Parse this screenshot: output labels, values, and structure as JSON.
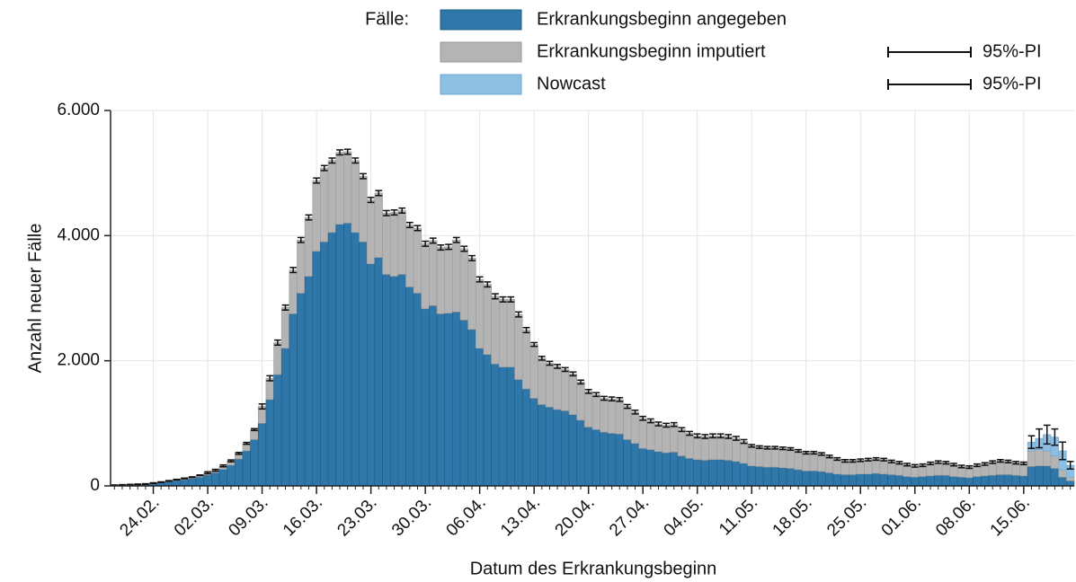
{
  "chart_data": {
    "type": "bar",
    "stacked": true,
    "legend": {
      "title": "Fälle:"
    },
    "ylabel": "Anzahl neuer Fälle",
    "xlabel": "Datum des Erkrankungsbeginn",
    "ylim": [
      0,
      6000
    ],
    "yticks": [
      0,
      {
        "value": 2000,
        "label": "2.000"
      },
      {
        "value": 4000,
        "label": "4.000"
      },
      {
        "value": 6000,
        "label": "6.000"
      }
    ],
    "grid": true,
    "categories": [
      null,
      null,
      null,
      null,
      null,
      "24.02.",
      null,
      null,
      null,
      null,
      null,
      null,
      "02.03.",
      null,
      null,
      null,
      null,
      null,
      null,
      "09.03.",
      null,
      null,
      null,
      null,
      null,
      null,
      "16.03.",
      null,
      null,
      null,
      null,
      null,
      null,
      "23.03.",
      null,
      null,
      null,
      null,
      null,
      null,
      "30.03.",
      null,
      null,
      null,
      null,
      null,
      null,
      "06.04.",
      null,
      null,
      null,
      null,
      null,
      null,
      "13.04.",
      null,
      null,
      null,
      null,
      null,
      null,
      "20.04.",
      null,
      null,
      null,
      null,
      null,
      null,
      "27.04.",
      null,
      null,
      null,
      null,
      null,
      null,
      "04.05.",
      null,
      null,
      null,
      null,
      null,
      null,
      "11.05.",
      null,
      null,
      null,
      null,
      null,
      null,
      "18.05.",
      null,
      null,
      null,
      null,
      null,
      null,
      "25.05.",
      null,
      null,
      null,
      null,
      null,
      null,
      "01.06.",
      null,
      null,
      null,
      null,
      null,
      null,
      "08.06.",
      null,
      null,
      null,
      null,
      null,
      null,
      "15.06.",
      null,
      null,
      null,
      null,
      null,
      null
    ],
    "series": [
      {
        "name": "Erkrankungsbeginn angegeben",
        "color": "#2e77a8",
        "stroke": "#1d5c86",
        "values": [
          9,
          13,
          17,
          21,
          26,
          38,
          50,
          68,
          85,
          100,
          118,
          140,
          175,
          210,
          265,
          330,
          430,
          560,
          740,
          1000,
          1380,
          1780,
          2200,
          2750,
          3080,
          3350,
          3750,
          3900,
          4050,
          4180,
          4200,
          4050,
          3900,
          3550,
          3650,
          3380,
          3350,
          3380,
          3180,
          3080,
          2830,
          2880,
          2750,
          2760,
          2780,
          2650,
          2500,
          2200,
          2100,
          1950,
          1900,
          1900,
          1700,
          1550,
          1400,
          1300,
          1260,
          1220,
          1200,
          1140,
          1050,
          940,
          900,
          860,
          840,
          830,
          740,
          680,
          600,
          580,
          550,
          530,
          540,
          480,
          440,
          420,
          410,
          420,
          420,
          410,
          390,
          360,
          320,
          310,
          300,
          300,
          290,
          280,
          260,
          240,
          240,
          230,
          210,
          190,
          180,
          180,
          190,
          190,
          200,
          190,
          180,
          170,
          150,
          140,
          150,
          160,
          170,
          170,
          150,
          140,
          130,
          150,
          160,
          170,
          180,
          180,
          170,
          160,
          310,
          320,
          320,
          280,
          140,
          80
        ]
      },
      {
        "name": "Erkrankungsbeginn imputiert",
        "color": "#b4b4b4",
        "stroke": "#9a9a9a",
        "interval_label": "95%-PI",
        "values": [
          1,
          2,
          3,
          4,
          4,
          7,
          10,
          12,
          15,
          20,
          22,
          30,
          35,
          40,
          55,
          70,
          90,
          120,
          160,
          270,
          340,
          510,
          650,
          700,
          850,
          940,
          1130,
          1180,
          1150,
          1150,
          1140,
          1150,
          1050,
          1020,
          1030,
          980,
          1020,
          1020,
          990,
          1040,
          1040,
          1040,
          1060,
          1060,
          1150,
          1140,
          1140,
          1100,
          1120,
          1080,
          1080,
          1080,
          1040,
          940,
          860,
          740,
          700,
          690,
          660,
          650,
          610,
          570,
          560,
          540,
          550,
          550,
          530,
          500,
          480,
          460,
          440,
          440,
          440,
          420,
          400,
          380,
          380,
          380,
          380,
          380,
          370,
          350,
          320,
          310,
          310,
          310,
          310,
          310,
          300,
          290,
          290,
          280,
          260,
          240,
          220,
          220,
          220,
          230,
          230,
          230,
          210,
          200,
          190,
          180,
          180,
          200,
          210,
          200,
          190,
          170,
          170,
          180,
          190,
          210,
          220,
          210,
          200,
          200,
          250,
          260,
          240,
          200,
          120,
          60
        ],
        "errors": [
          5,
          5,
          5,
          5,
          5,
          5,
          5,
          5,
          5,
          5,
          5,
          5,
          15,
          15,
          15,
          15,
          15,
          15,
          15,
          40,
          40,
          40,
          40,
          40,
          40,
          40,
          40,
          40,
          40,
          40,
          40,
          40,
          40,
          40,
          40,
          40,
          40,
          40,
          40,
          40,
          40,
          40,
          40,
          40,
          40,
          40,
          40,
          40,
          40,
          40,
          40,
          40,
          40,
          40,
          30,
          30,
          30,
          30,
          30,
          30,
          30,
          30,
          30,
          30,
          30,
          30,
          30,
          30,
          30,
          30,
          30,
          30,
          30,
          30,
          30,
          30,
          30,
          30,
          30,
          30,
          30,
          30,
          20,
          20,
          20,
          20,
          20,
          20,
          20,
          20,
          20,
          20,
          20,
          20,
          20,
          20,
          20,
          20,
          20,
          20,
          20,
          20,
          20,
          20,
          20,
          20,
          20,
          20,
          20,
          20,
          20,
          20,
          20,
          20,
          20,
          20,
          20,
          20,
          null,
          null,
          null,
          null,
          null,
          null
        ]
      },
      {
        "name": "Nowcast",
        "color": "#8dbfe2",
        "stroke": "#6fa7d0",
        "interval_label": "95%-PI",
        "values": [
          null,
          null,
          null,
          null,
          null,
          null,
          null,
          null,
          null,
          null,
          null,
          null,
          null,
          null,
          null,
          null,
          null,
          null,
          null,
          null,
          null,
          null,
          null,
          null,
          null,
          null,
          null,
          null,
          null,
          null,
          null,
          null,
          null,
          null,
          null,
          null,
          null,
          null,
          null,
          null,
          null,
          null,
          null,
          null,
          null,
          null,
          null,
          null,
          null,
          null,
          null,
          null,
          null,
          null,
          null,
          null,
          null,
          null,
          null,
          null,
          null,
          null,
          null,
          null,
          null,
          null,
          null,
          null,
          null,
          null,
          null,
          null,
          null,
          null,
          null,
          null,
          null,
          null,
          null,
          null,
          null,
          null,
          null,
          null,
          null,
          null,
          null,
          null,
          null,
          null,
          null,
          null,
          null,
          null,
          null,
          null,
          null,
          null,
          null,
          null,
          null,
          null,
          null,
          null,
          null,
          null,
          null,
          null,
          null,
          null,
          null,
          null,
          null,
          null,
          null,
          null,
          null,
          null,
          140,
          180,
          260,
          300,
          300,
          190
        ],
        "errors": [
          null,
          null,
          null,
          null,
          null,
          null,
          null,
          null,
          null,
          null,
          null,
          null,
          null,
          null,
          null,
          null,
          null,
          null,
          null,
          null,
          null,
          null,
          null,
          null,
          null,
          null,
          null,
          null,
          null,
          null,
          null,
          null,
          null,
          null,
          null,
          null,
          null,
          null,
          null,
          null,
          null,
          null,
          null,
          null,
          null,
          null,
          null,
          null,
          null,
          null,
          null,
          null,
          null,
          null,
          null,
          null,
          null,
          null,
          null,
          null,
          null,
          null,
          null,
          null,
          null,
          null,
          null,
          null,
          null,
          null,
          null,
          null,
          null,
          null,
          null,
          null,
          null,
          null,
          null,
          null,
          null,
          null,
          null,
          null,
          null,
          null,
          null,
          null,
          null,
          null,
          null,
          null,
          null,
          null,
          null,
          null,
          null,
          null,
          null,
          null,
          null,
          null,
          null,
          null,
          null,
          null,
          null,
          null,
          null,
          null,
          null,
          null,
          null,
          null,
          null,
          null,
          null,
          null,
          100,
          150,
          150,
          130,
          140,
          60
        ]
      }
    ]
  }
}
